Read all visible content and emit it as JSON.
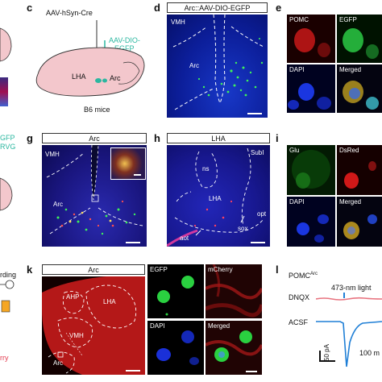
{
  "panels": {
    "c": {
      "letter": "c",
      "virus1": "AAV-hSyn-Cre",
      "virus2_line1": "AAV-DIO-",
      "virus2_line2": "EGFP",
      "region_lha": "LHA",
      "region_arc": "Arc",
      "mouse": "B6 mice",
      "colors": {
        "virus2": "#2bb7a0",
        "brain": "#f3c7cc"
      }
    },
    "d": {
      "letter": "d",
      "header": "Arc::AAV-DIO-EGFP",
      "vmh": "VMH",
      "arc": "Arc"
    },
    "e": {
      "letter": "e",
      "tiles": [
        "POMC",
        "EGFP",
        "DAPI",
        "Merged"
      ]
    },
    "g": {
      "letter": "g",
      "header": "Arc",
      "vmh": "VMH",
      "arc": "Arc"
    },
    "h": {
      "letter": "h",
      "header": "LHA",
      "ns": "ns",
      "subi": "SubI",
      "lha": "LHA",
      "opt": "opt",
      "sox": "sox",
      "aot": "aot"
    },
    "i": {
      "letter": "i",
      "tiles": [
        "Glu",
        "DsRed",
        "DAPI",
        "Merged"
      ]
    },
    "k": {
      "letter": "k",
      "header": "Arc",
      "ahp": "AHP",
      "lha": "LHA",
      "vmh": "VMH",
      "arc": "Arc",
      "tiles": [
        "EGFP",
        "mCherry",
        "DAPI",
        "Merged"
      ]
    },
    "l": {
      "letter": "l",
      "cell_main": "POMC",
      "cell_sup": "Arc",
      "light": "473-nm light",
      "dnqx": "DNQX",
      "acsf": "ACSF",
      "scale_y": "50 pA",
      "scale_x": "100 m",
      "colors": {
        "dnqx": "#e8737f",
        "acsf": "#1f7fd6",
        "light": "#1f7fd6"
      }
    },
    "left_edge": {
      "text1": "GFP",
      "text2": "RVG",
      "text3": "rding",
      "text4": "rry"
    }
  }
}
